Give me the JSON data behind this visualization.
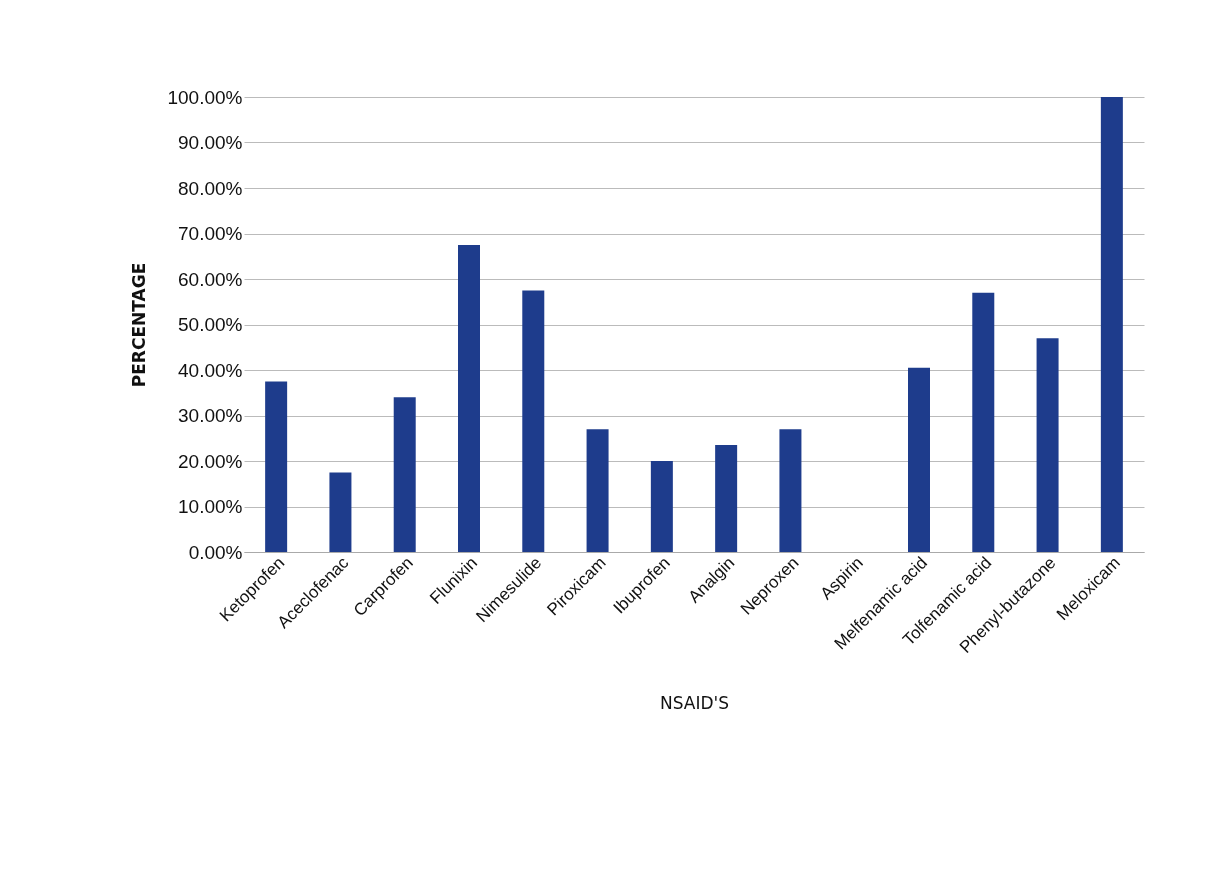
{
  "chart_data": {
    "type": "bar",
    "xlabel": "NSAID'S",
    "ylabel": "PERCENTAGE",
    "categories": [
      "Ketoprofen",
      "Aceclofenac",
      "Carprofen",
      "Flunixin",
      "Nimesulide",
      "Piroxicam",
      "Ibuprofen",
      "Analgin",
      "Neproxen",
      "Aspirin",
      "Melfenamic acid",
      "Tolfenamic acid",
      "Phenyl-butazone",
      "Meloxicam"
    ],
    "values": [
      37.5,
      17.5,
      34,
      67.5,
      57.5,
      27,
      20,
      23.5,
      27,
      0,
      40.5,
      57,
      47,
      100
    ],
    "color": "#1e3c8c",
    "ylim": [
      0,
      100
    ],
    "yticks": [
      {
        "value": 0,
        "label": "0.00%"
      },
      {
        "value": 10,
        "label": "10.00%"
      },
      {
        "value": 20,
        "label": "20.00%"
      },
      {
        "value": 30,
        "label": "30.00%"
      },
      {
        "value": 40,
        "label": "40.00%"
      },
      {
        "value": 50,
        "label": "50.00%"
      },
      {
        "value": 60,
        "label": "60.00%"
      },
      {
        "value": 70,
        "label": "70.00%"
      },
      {
        "value": 80,
        "label": "80.00%"
      },
      {
        "value": 90,
        "label": "90.00%"
      },
      {
        "value": 100,
        "label": "100.00%"
      }
    ],
    "grid": "y"
  }
}
